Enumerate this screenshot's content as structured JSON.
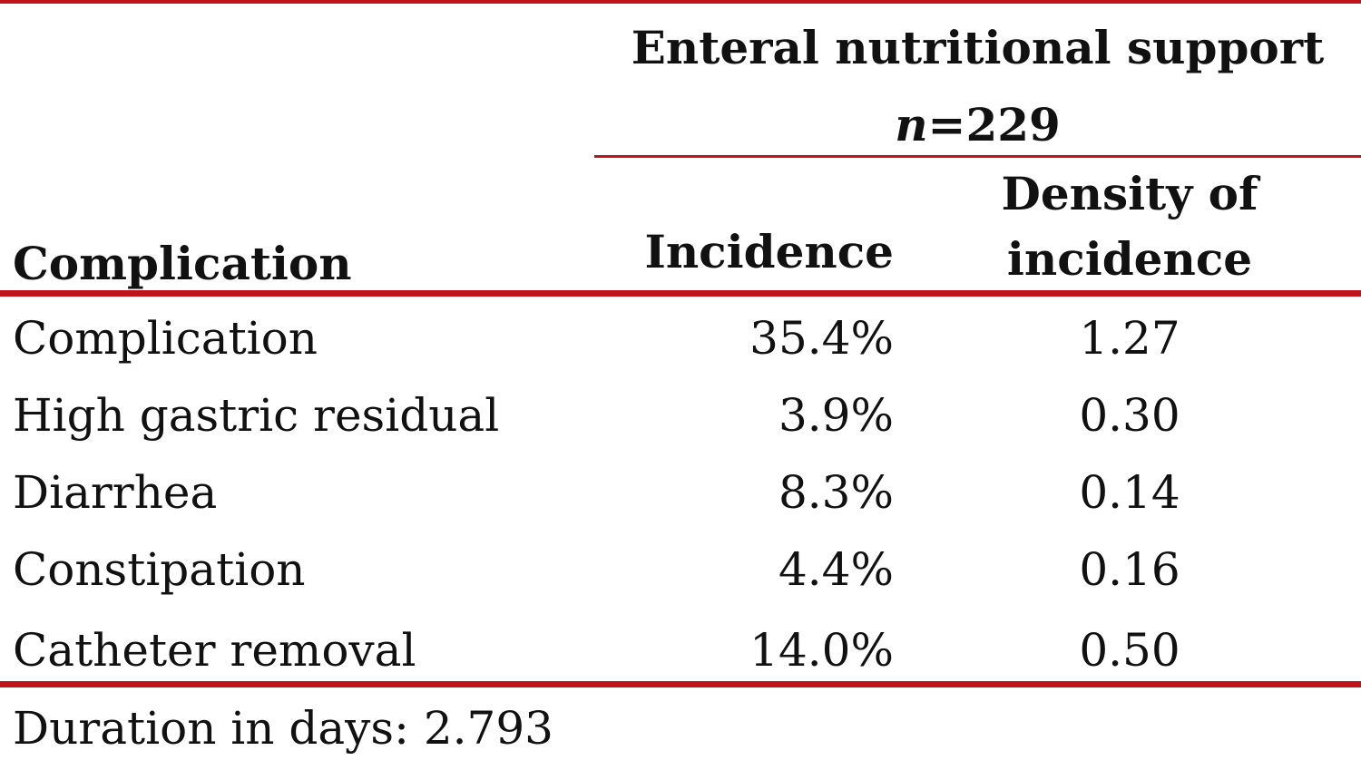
{
  "table": {
    "group_header": {
      "title": "Enteral nutritional support",
      "n_symbol": "n",
      "n_value": "=229"
    },
    "columns": {
      "complication": "Complication",
      "incidence": "Incidence",
      "density_line1": "Density of",
      "density_line2": "incidence"
    },
    "rows": [
      {
        "complication": "Complication",
        "incidence": "35.4%",
        "density": "1.27"
      },
      {
        "complication": "High gastric residual",
        "incidence": "3.9%",
        "density": "0.30"
      },
      {
        "complication": "Diarrhea",
        "incidence": "8.3%",
        "density": "0.14"
      },
      {
        "complication": "Constipation",
        "incidence": "4.4%",
        "density": "0.16"
      },
      {
        "complication": "Catheter removal",
        "incidence": "14.0%",
        "density": "0.50"
      }
    ],
    "footnote": "Duration in days: 2.793"
  },
  "colors": {
    "rule": "#c0141c",
    "text": "#111111"
  }
}
